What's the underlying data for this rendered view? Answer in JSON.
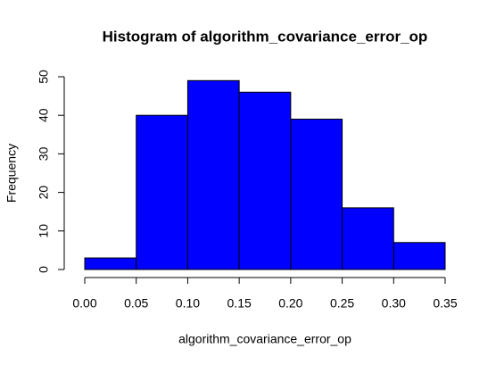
{
  "chart_data": {
    "type": "histogram",
    "title": "Histogram of algorithm_covariance_error_op",
    "x_label": "algorithm_covariance_error_op",
    "y_label": "Frequency",
    "bins": [
      0,
      0.05,
      0.1,
      0.15,
      0.2,
      0.25,
      0.3,
      0.35
    ],
    "counts": [
      3,
      40,
      49,
      46,
      39,
      16,
      7
    ],
    "color": "#0000ff",
    "xlim": [
      0,
      0.35
    ],
    "xticks": [
      {
        "value": 0,
        "label": "0.00"
      },
      {
        "value": 0.05,
        "label": "0.05"
      },
      {
        "value": 0.1,
        "label": "0.10"
      },
      {
        "value": 0.15,
        "label": "0.15"
      },
      {
        "value": 0.2,
        "label": "0.20"
      },
      {
        "value": 0.25,
        "label": "0.25"
      },
      {
        "value": 0.3,
        "label": "0.30"
      },
      {
        "value": 0.35,
        "label": "0.35"
      }
    ],
    "ylim": [
      0,
      50
    ],
    "yticks": [
      0,
      10,
      20,
      30,
      40,
      50
    ]
  }
}
